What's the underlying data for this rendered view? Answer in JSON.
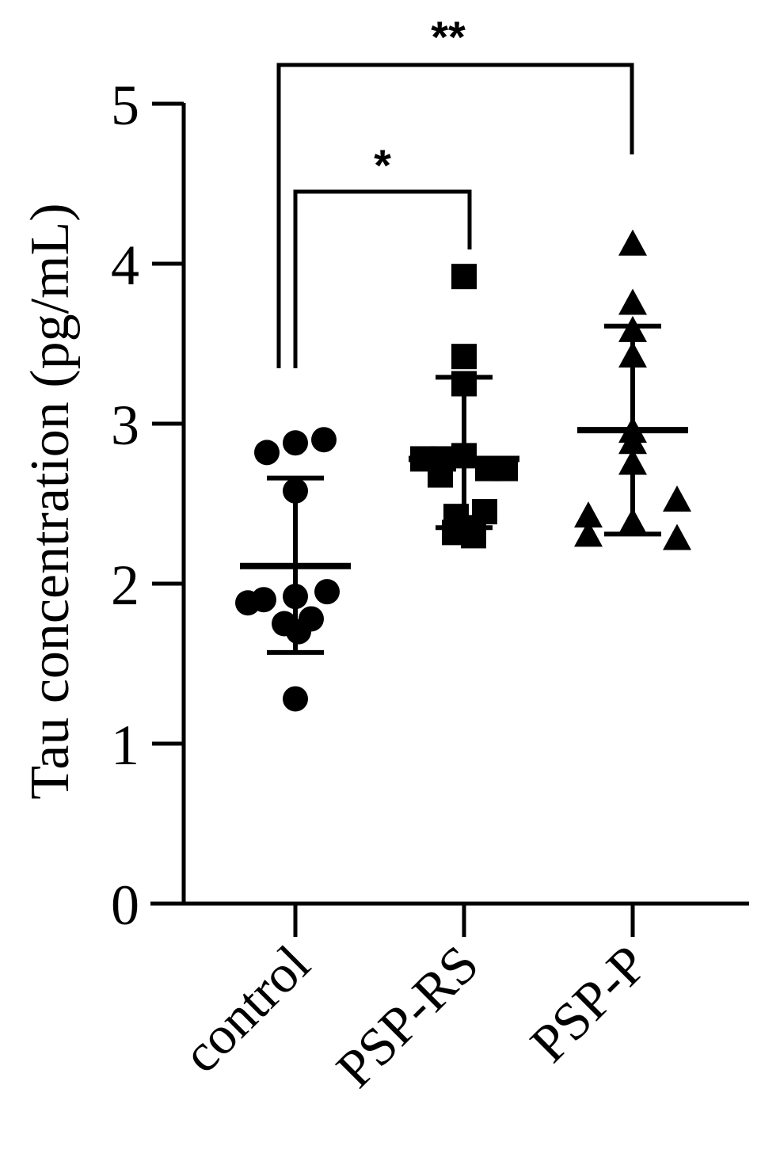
{
  "chart_data": {
    "type": "scatter",
    "ylabel": "Tau concentration (pg/mL)",
    "ylim": [
      0,
      5
    ],
    "yticks": [
      "0",
      "1",
      "2",
      "3",
      "4",
      "5"
    ],
    "categories": [
      "control",
      "PSP-RS",
      "PSP-P"
    ],
    "series": [
      {
        "category": "control",
        "marker": "circle",
        "values": [
          2.82,
          2.88,
          2.9,
          2.58,
          1.95,
          1.9,
          1.88,
          1.92,
          1.78,
          1.75,
          1.7,
          1.28
        ],
        "mean": 2.11,
        "sd_upper": 2.66,
        "sd_lower": 1.57
      },
      {
        "category": "PSP-RS",
        "marker": "square",
        "values": [
          3.92,
          3.42,
          3.25,
          2.78,
          2.8,
          2.72,
          2.78,
          2.68,
          2.72,
          2.45,
          2.42,
          2.35,
          2.32,
          2.3
        ],
        "mean": 2.78,
        "sd_upper": 3.29,
        "sd_lower": 2.35
      },
      {
        "category": "PSP-P",
        "marker": "triangle",
        "values": [
          4.12,
          3.75,
          3.58,
          3.42,
          2.95,
          2.88,
          2.75,
          2.42,
          2.52,
          2.3,
          2.38,
          2.28
        ],
        "mean": 2.96,
        "sd_upper": 3.61,
        "sd_lower": 2.31
      }
    ],
    "significance": [
      {
        "from": "control",
        "to": "PSP-RS",
        "label": "*"
      },
      {
        "from": "control",
        "to": "PSP-P",
        "label": "**"
      }
    ]
  }
}
